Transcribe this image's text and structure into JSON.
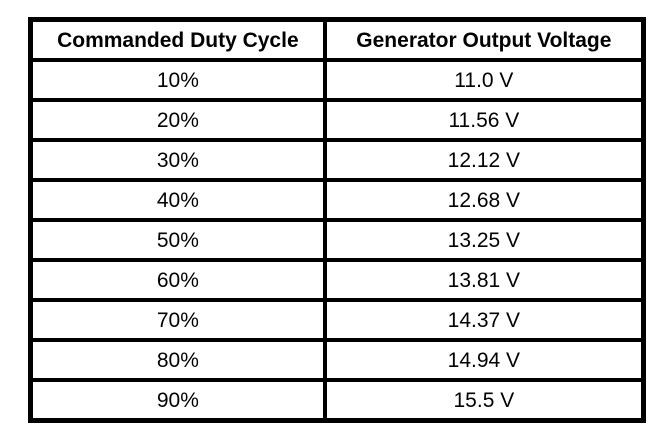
{
  "table": {
    "headers": [
      "Commanded Duty Cycle",
      "Generator Output Voltage"
    ],
    "rows": [
      [
        "10%",
        "11.0 V"
      ],
      [
        "20%",
        "11.56 V"
      ],
      [
        "30%",
        "12.12 V"
      ],
      [
        "40%",
        "12.68 V"
      ],
      [
        "50%",
        "13.25 V"
      ],
      [
        "60%",
        "13.81 V"
      ],
      [
        "70%",
        "14.37 V"
      ],
      [
        "80%",
        "14.94 V"
      ],
      [
        "90%",
        "15.5 V"
      ]
    ]
  },
  "colors": {
    "border": "#000000",
    "background": "#ffffff",
    "text": "#000000"
  },
  "chart_data": {
    "type": "table",
    "title": "",
    "columns": [
      "Commanded Duty Cycle",
      "Generator Output Voltage"
    ],
    "rows": [
      [
        "10%",
        "11.0 V"
      ],
      [
        "20%",
        "11.56 V"
      ],
      [
        "30%",
        "12.12 V"
      ],
      [
        "40%",
        "12.68 V"
      ],
      [
        "50%",
        "13.25 V"
      ],
      [
        "60%",
        "13.81 V"
      ],
      [
        "70%",
        "14.37 V"
      ],
      [
        "80%",
        "14.94 V"
      ],
      [
        "90%",
        "15.5 V"
      ]
    ],
    "duty_cycle_percent": [
      10,
      20,
      30,
      40,
      50,
      60,
      70,
      80,
      90
    ],
    "output_voltage_v": [
      11.0,
      11.56,
      12.12,
      12.68,
      13.25,
      13.81,
      14.37,
      14.94,
      15.5
    ]
  }
}
